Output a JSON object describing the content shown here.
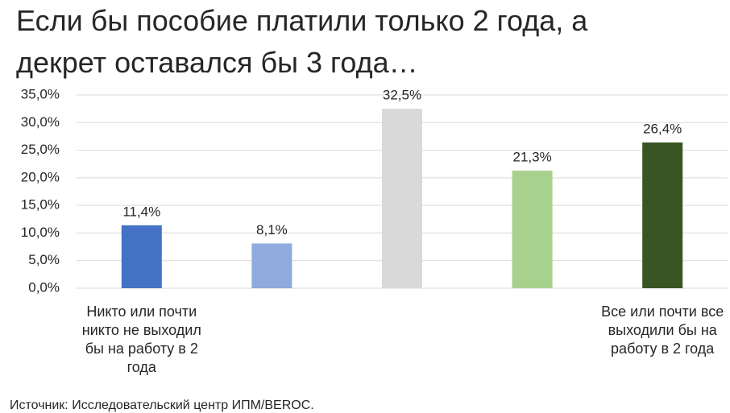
{
  "chart_data": {
    "type": "bar",
    "title": "Если бы пособие платили только 2 года, а декрет оставался бы 3 года…",
    "categories": [
      "Никто или почти никто не выходил бы на работу в 2 года",
      null,
      null,
      null,
      "Все или почти все выходили бы на работу в 2 года"
    ],
    "values": [
      11.4,
      8.1,
      32.5,
      21.3,
      26.4
    ],
    "value_labels": [
      "11,4%",
      "8,1%",
      "32,5%",
      "21,3%",
      "26,4%"
    ],
    "colors": [
      "#4472c4",
      "#8faadc",
      "#d9d9d9",
      "#a9d18e",
      "#375623"
    ],
    "ylim": [
      0,
      35
    ],
    "yticks": [
      {
        "value": 0,
        "label": "0,0%"
      },
      {
        "value": 5,
        "label": "5,0%"
      },
      {
        "value": 10,
        "label": "10,0%"
      },
      {
        "value": 15,
        "label": "15,0%"
      },
      {
        "value": 20,
        "label": "20,0%"
      },
      {
        "value": 25,
        "label": "25,0%"
      },
      {
        "value": 30,
        "label": "30,0%"
      },
      {
        "value": 35,
        "label": "35,0%"
      }
    ],
    "grid": true,
    "source": "Источник: Исследовательский центр ИПМ/BEROC."
  }
}
